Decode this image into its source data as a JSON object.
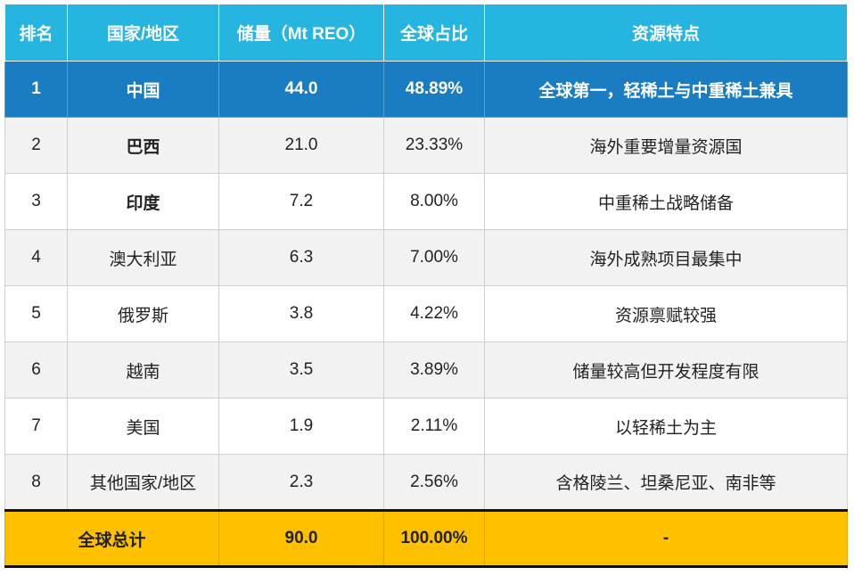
{
  "table": {
    "header": [
      "排名",
      "国家/地区",
      "储量（Mt REO）",
      "全球占比",
      "资源特点"
    ],
    "rows": [
      [
        "1",
        "中国",
        "44.0",
        "48.89%",
        "全球第一，轻稀土与中重稀土兼具"
      ],
      [
        "2",
        "巴西",
        "21.0",
        "23.33%",
        "海外重要增量资源国"
      ],
      [
        "3",
        "印度",
        "7.2",
        "8.00%",
        "中重稀土战略储备"
      ],
      [
        "4",
        "澳大利亚",
        "6.3",
        "7.00%",
        "海外成熟项目最集中"
      ],
      [
        "5",
        "俄罗斯",
        "3.8",
        "4.22%",
        "资源禀赋较强"
      ],
      [
        "6",
        "越南",
        "3.5",
        "3.89%",
        "储量较高但开发程度有限"
      ],
      [
        "7",
        "美国",
        "1.9",
        "2.11%",
        "以轻稀土为主"
      ],
      [
        "8",
        "其他国家/地区",
        "2.3",
        "2.56%",
        "含格陵兰、坦桑尼亚、南非等"
      ]
    ],
    "total": [
      "全球总计",
      "90.0",
      "100.00%",
      "-"
    ]
  }
}
